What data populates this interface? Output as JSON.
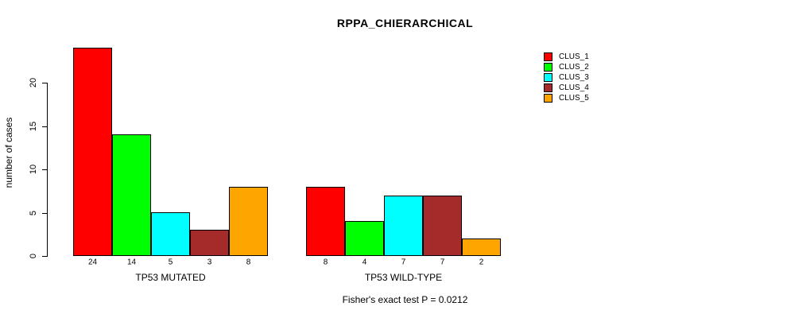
{
  "chart_data": {
    "type": "bar",
    "title": "RPPA_CHIERARCHICAL",
    "ylabel": "number of cases",
    "xlabel": "",
    "annotation": "Fisher's exact test P = 0.0212",
    "yticks": [
      0,
      5,
      10,
      15,
      20
    ],
    "ylim": [
      0,
      24
    ],
    "grid": false,
    "legend_position": "right",
    "series": [
      {
        "name": "CLUS_1",
        "color": "#FF0000"
      },
      {
        "name": "CLUS_2",
        "color": "#00FF00"
      },
      {
        "name": "CLUS_3",
        "color": "#00FFFF"
      },
      {
        "name": "CLUS_4",
        "color": "#A52A2A"
      },
      {
        "name": "CLUS_5",
        "color": "#FFA500"
      }
    ],
    "groups": [
      {
        "label": "TP53 MUTATED",
        "values": [
          24,
          14,
          5,
          3,
          8
        ]
      },
      {
        "label": "TP53 WILD-TYPE",
        "values": [
          8,
          4,
          7,
          7,
          2
        ]
      }
    ]
  }
}
